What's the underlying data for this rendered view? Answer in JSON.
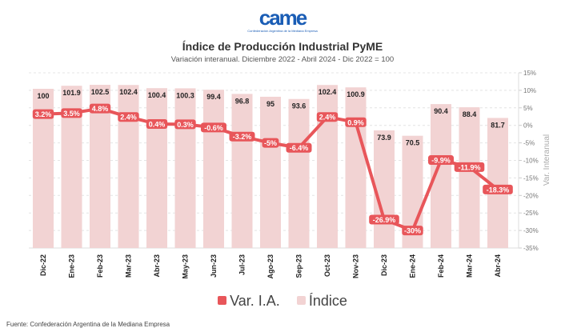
{
  "logo": {
    "mark": "came",
    "subtitle": "Confederación Argentina de la Mediana Empresa"
  },
  "chart_data": {
    "type": "bar+line",
    "title": "Índice de Producción Industrial PyME",
    "subtitle": "Variación interanual. Diciembre 2022 - Abril 2024 - Dic 2022 = 100",
    "categories": [
      "Dic-22",
      "Ene-23",
      "Feb-23",
      "Mar-23",
      "Abr-23",
      "May-23",
      "Jun-23",
      "Jul-23",
      "Ago-23",
      "Sep-23",
      "Oct-23",
      "Nov-23",
      "Dic-23",
      "Ene-24",
      "Feb-24",
      "Mar-24",
      "Abr-24"
    ],
    "series": [
      {
        "name": "Índice",
        "type": "bar",
        "color": "#f2d3d3",
        "values": [
          100,
          101.9,
          102.5,
          102.4,
          100.4,
          100.3,
          99.4,
          96.8,
          95,
          93.6,
          102.4,
          100.9,
          73.9,
          70.5,
          90.4,
          88.4,
          81.7
        ],
        "labels": [
          "100",
          "101.9",
          "102.5",
          "102.4",
          "100.4",
          "100.3",
          "99.4",
          "96.8",
          "95",
          "93.6",
          "102.4",
          "100.9",
          "73.9",
          "70.5",
          "90.4",
          "88.4",
          "81.7"
        ]
      },
      {
        "name": "Var. I.A.",
        "type": "line",
        "color": "#e8565a",
        "values": [
          3.2,
          3.5,
          4.8,
          2.4,
          0.4,
          0.3,
          -0.6,
          -3.2,
          -5,
          -6.4,
          2.4,
          0.9,
          -26.9,
          -30,
          -9.9,
          -11.9,
          -18.3
        ],
        "labels": [
          "3.2%",
          "3.5%",
          "4.8%",
          "2.4%",
          "0.4%",
          "0.3%",
          "-0.6%",
          "-3.2%",
          "-5%",
          "-6.4%",
          "2.4%",
          "0.9%",
          "-26.9%",
          "-30%",
          "-9.9%",
          "-11.9%",
          "-18.3%"
        ]
      }
    ],
    "y_right": {
      "label": "Var. Interanual",
      "min": -35,
      "max": 15,
      "ticks": [
        "15%",
        "10%",
        "5%",
        "0%",
        "-5%",
        "-10%",
        "-15%",
        "-20%",
        "-25%",
        "-30%",
        "-35%"
      ]
    },
    "legend": [
      "Var. I.A.",
      "Índice"
    ],
    "legend_position": "bottom"
  },
  "footer": "Fuente: Confederación Argentina de la Mediana Empresa"
}
